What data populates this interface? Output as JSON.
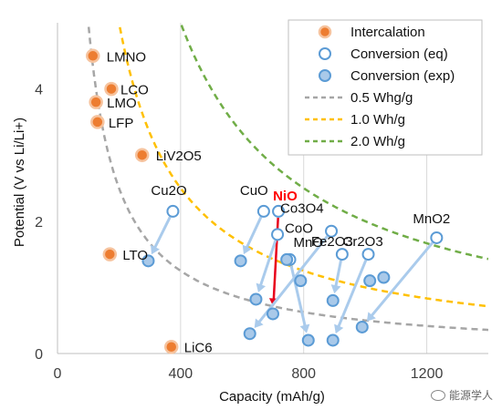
{
  "watermark": "能源学人",
  "chart_data": {
    "type": "scatter",
    "xlabel": "Capacity (mAh/g)",
    "ylabel": "Potential (V vs Li/Li+)",
    "xlim": [
      0,
      1400
    ],
    "ylim": [
      0,
      5
    ],
    "xticks": [
      0,
      400,
      800,
      1200
    ],
    "yticks": [
      0,
      2,
      4
    ],
    "grid": "vertical",
    "legend_position": "top-right",
    "colors": {
      "intercalation": "#ed7d31",
      "conversion": "#5b9bd5",
      "arrow": "#aacbec",
      "arrow_highlight": "#e8001c",
      "curve_0_5": "#a6a6a6",
      "curve_1_0": "#ffc000",
      "curve_2_0": "#70ad47"
    },
    "legend": {
      "intercalation": "Intercalation",
      "conversion_eq": "Conversion (eq)",
      "conversion_exp": "Conversion (exp)",
      "curve_0_5": "0.5 Whg/g",
      "curve_1_0": "1.0 Wh/g",
      "curve_2_0": "2.0 Wh/g"
    },
    "energy_curves": [
      {
        "name": "0.5 Whg/g",
        "energy": 500,
        "color": "#a6a6a6"
      },
      {
        "name": "1.0 Wh/g",
        "energy": 1000,
        "color": "#ffc000"
      },
      {
        "name": "2.0 Wh/g",
        "energy": 2000,
        "color": "#70ad47"
      }
    ],
    "intercalation": [
      {
        "label": "LMNO",
        "x": 115,
        "y": 4.5
      },
      {
        "label": "LCO",
        "x": 175,
        "y": 4.0
      },
      {
        "label": "LMO",
        "x": 125,
        "y": 3.8
      },
      {
        "label": "LFP",
        "x": 130,
        "y": 3.5
      },
      {
        "label": "LiV2O5",
        "x": 275,
        "y": 3.0
      },
      {
        "label": "LTO",
        "x": 170,
        "y": 1.5
      },
      {
        "label": "LiC6",
        "x": 370,
        "y": 0.1
      }
    ],
    "conversion": [
      {
        "label": "Cu2O",
        "eq": [
          375,
          2.15
        ],
        "exp": [
          295,
          1.4
        ]
      },
      {
        "label": "CuO",
        "eq": [
          670,
          2.15
        ],
        "exp": [
          595,
          1.4
        ]
      },
      {
        "label": "NiO",
        "eq": [
          718,
          2.15
        ],
        "exp": [
          700,
          0.6
        ],
        "highlight": true
      },
      {
        "label": "CoO",
        "eq": [
          715,
          1.8
        ],
        "exp": [
          645,
          0.82
        ]
      },
      {
        "label": "Co3O4",
        "eq": [
          890,
          1.85
        ],
        "exp": [
          625,
          0.3
        ]
      },
      {
        "label": "MnO",
        "eq": [
          755,
          1.42
        ],
        "exp": [
          815,
          0.2
        ]
      },
      {
        "label": "Fe2O3",
        "eq": [
          925,
          1.5
        ],
        "exp": [
          895,
          0.8
        ]
      },
      {
        "label": "Cr2O3",
        "eq": [
          1010,
          1.5
        ],
        "exp": [
          895,
          0.2
        ]
      },
      {
        "label": "MnO2",
        "eq": [
          1232,
          1.75
        ],
        "exp": [
          990,
          0.4
        ]
      }
    ],
    "extra_points": [
      {
        "x": 745,
        "y": 1.42
      },
      {
        "x": 790,
        "y": 1.1
      },
      {
        "x": 1015,
        "y": 1.1
      },
      {
        "x": 1060,
        "y": 1.15
      }
    ]
  }
}
